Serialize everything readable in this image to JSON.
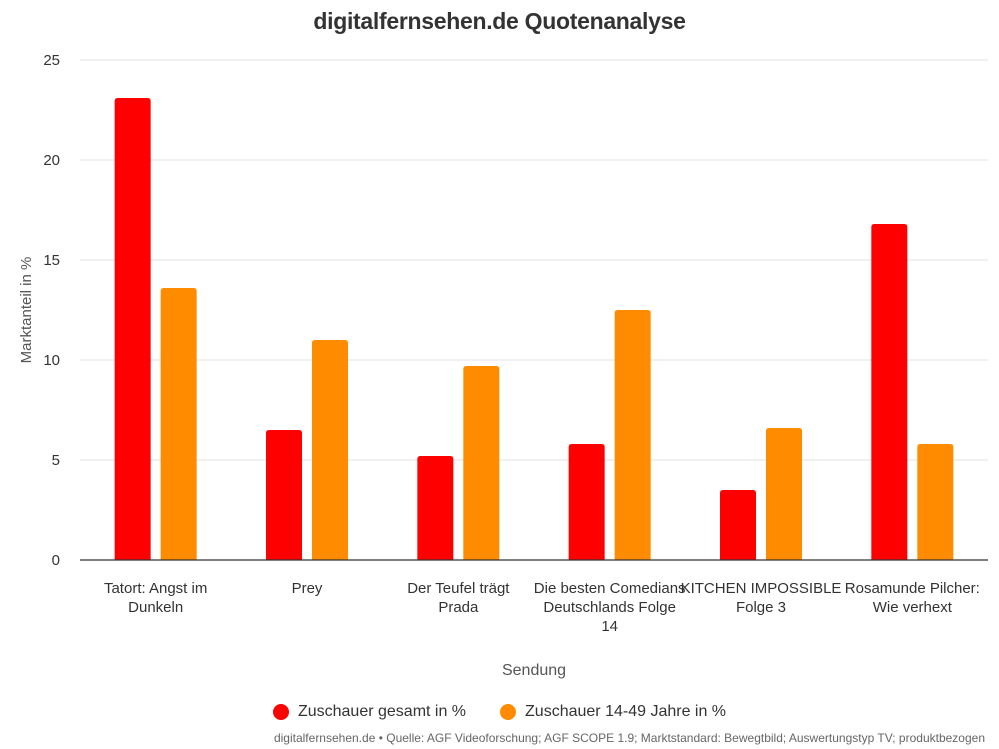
{
  "chart_data": {
    "type": "bar",
    "title": "digitalfernsehen.de Quotenanalyse",
    "xlabel": "Sendung",
    "ylabel": "Marktanteil in %",
    "ylim": [
      0,
      25
    ],
    "yticks": [
      0,
      5,
      10,
      15,
      20,
      25
    ],
    "grid": true,
    "legend_position": "bottom",
    "categories": [
      "Tatort: Angst im Dunkeln",
      "Prey",
      "Der Teufel trägt Prada",
      "Die besten Comedians Deutschlands Folge 14",
      "KITCHEN IMPOSSIBLE Folge 3",
      "Rosamunde Pilcher: Wie verhext"
    ],
    "series": [
      {
        "name": "Zuschauer gesamt in %",
        "color": "#ff0000",
        "values": [
          23.1,
          6.5,
          5.2,
          5.8,
          3.5,
          16.8
        ]
      },
      {
        "name": "Zuschauer 14-49 Jahre in %",
        "color": "#ff8c00",
        "values": [
          13.6,
          11.0,
          9.7,
          12.5,
          6.6,
          5.8
        ]
      }
    ],
    "source": "digitalfernsehen.de • Quelle: AGF Videoforschung; AGF SCOPE 1.9; Marktstandard: Bewegtbild; Auswertungstyp TV; produktbezogen"
  }
}
